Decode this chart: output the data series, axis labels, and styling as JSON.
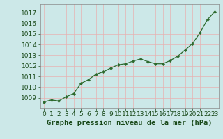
{
  "x": [
    0,
    1,
    2,
    3,
    4,
    5,
    6,
    7,
    8,
    9,
    10,
    11,
    12,
    13,
    14,
    15,
    16,
    17,
    18,
    19,
    20,
    21,
    22,
    23
  ],
  "y": [
    1008.6,
    1008.8,
    1008.7,
    1009.1,
    1009.4,
    1010.35,
    1010.7,
    1011.2,
    1011.45,
    1011.8,
    1012.1,
    1012.2,
    1012.45,
    1012.65,
    1012.4,
    1012.2,
    1012.2,
    1012.5,
    1012.9,
    1013.5,
    1014.1,
    1015.1,
    1016.35,
    1017.1
  ],
  "line_color": "#2d6a2d",
  "marker_color": "#2d6a2d",
  "bg_color": "#cce8e8",
  "plot_bg_color": "#cce8e8",
  "grid_color": "#e8b0b0",
  "xlabel": "Graphe pression niveau de la mer (hPa)",
  "xlabel_color": "#1a4a1a",
  "tick_color": "#1a4a1a",
  "ylim_min": 1008.0,
  "ylim_max": 1017.8,
  "yticks": [
    1009,
    1010,
    1011,
    1012,
    1013,
    1014,
    1015,
    1016,
    1017
  ],
  "xlim_min": -0.5,
  "xlim_max": 23.5,
  "tick_fontsize": 6.5,
  "xlabel_fontsize": 7.5
}
